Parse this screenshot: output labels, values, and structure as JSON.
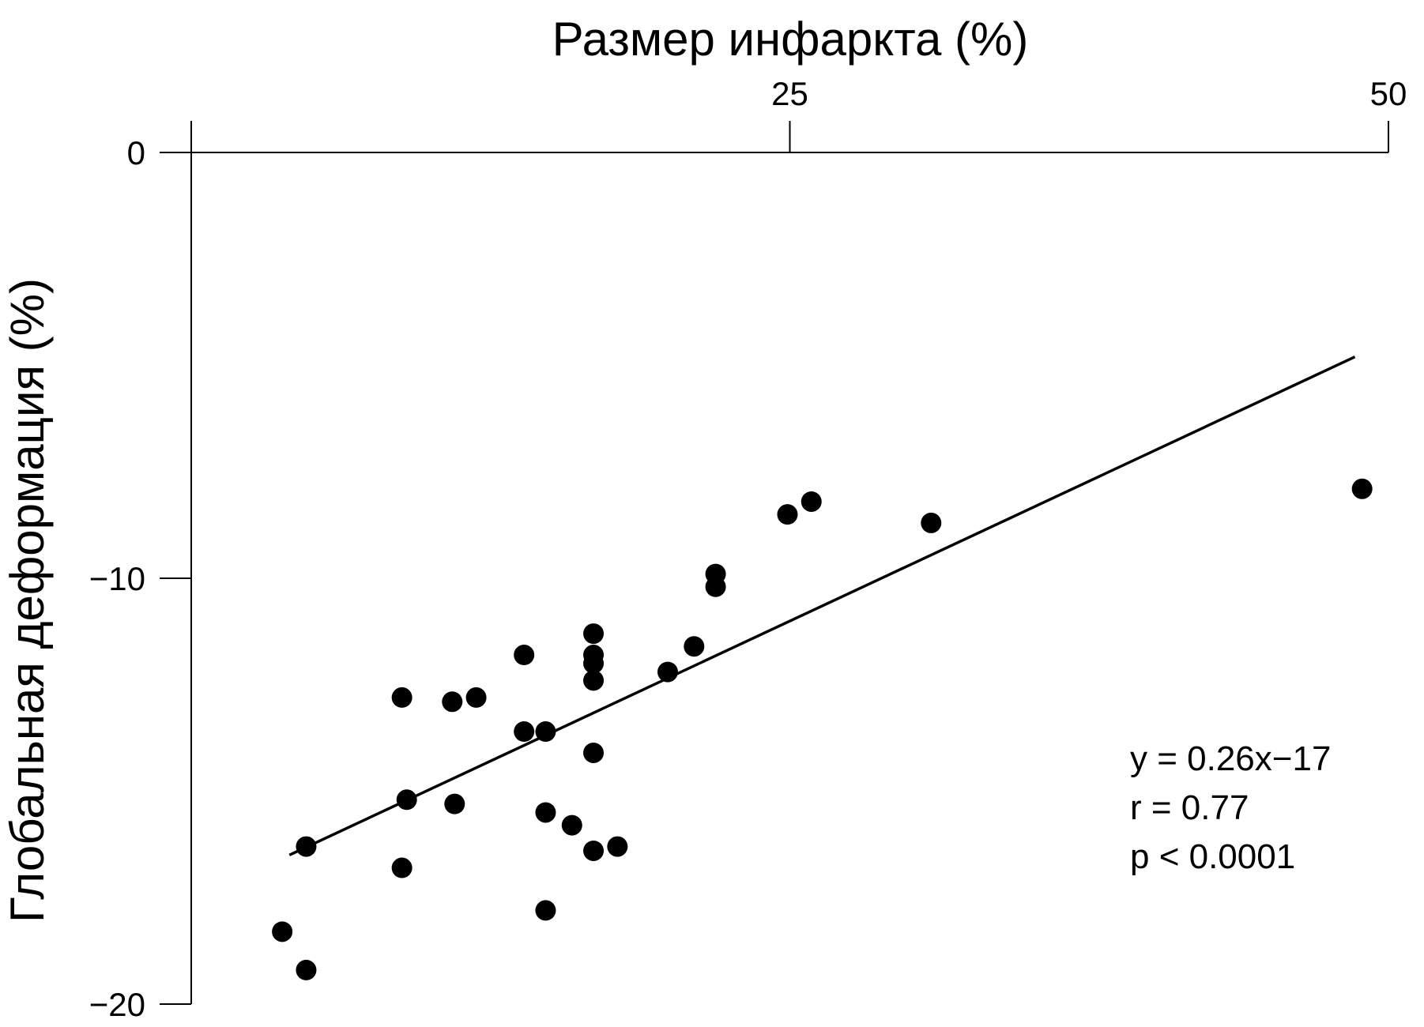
{
  "chart_data": {
    "type": "scatter",
    "xlabel": "Размер инфаркта (%)",
    "ylabel": "Глобальная деформация (%)",
    "xlim": [
      0,
      50
    ],
    "ylim": [
      -20,
      0
    ],
    "x_ticks": [
      {
        "value": 25,
        "label": "25"
      },
      {
        "value": 50,
        "label": "50"
      }
    ],
    "y_ticks": [
      {
        "value": 0,
        "label": "0"
      },
      {
        "value": -10,
        "label": "−10"
      },
      {
        "value": -20,
        "label": "−20"
      }
    ],
    "x_axis_position": "top",
    "grid": false,
    "legend": "none",
    "series": [
      {
        "points": [
          [
            3.8,
            -18.3
          ],
          [
            4.8,
            -19.2
          ],
          [
            4.8,
            -16.3
          ],
          [
            8.8,
            -12.8
          ],
          [
            9.0,
            -15.2
          ],
          [
            8.8,
            -16.8
          ],
          [
            10.9,
            -12.9
          ],
          [
            11.0,
            -15.3
          ],
          [
            11.9,
            -12.8
          ],
          [
            13.9,
            -11.8
          ],
          [
            13.9,
            -13.6
          ],
          [
            14.8,
            -13.6
          ],
          [
            14.8,
            -15.5
          ],
          [
            14.8,
            -17.8
          ],
          [
            15.9,
            -15.8
          ],
          [
            16.8,
            -11.3
          ],
          [
            16.8,
            -11.8
          ],
          [
            16.8,
            -12.0
          ],
          [
            16.8,
            -12.4
          ],
          [
            16.8,
            -14.1
          ],
          [
            16.8,
            -16.4
          ],
          [
            17.8,
            -16.3
          ],
          [
            19.9,
            -12.2
          ],
          [
            21.0,
            -11.6
          ],
          [
            21.9,
            -9.9
          ],
          [
            21.9,
            -10.2
          ],
          [
            24.9,
            -8.5
          ],
          [
            25.9,
            -8.2
          ],
          [
            30.9,
            -8.7
          ],
          [
            48.9,
            -7.9
          ]
        ]
      }
    ],
    "fit": {
      "type": "linear",
      "x_range": [
        4.1,
        48.6
      ],
      "y_range": [
        -16.5,
        -4.8
      ]
    },
    "annotations": [
      "y = 0.26x−17",
      "r = 0.77",
      "p < 0.0001"
    ],
    "colors": {
      "points": "#000000",
      "line": "#000000",
      "background": "#ffffff"
    }
  }
}
